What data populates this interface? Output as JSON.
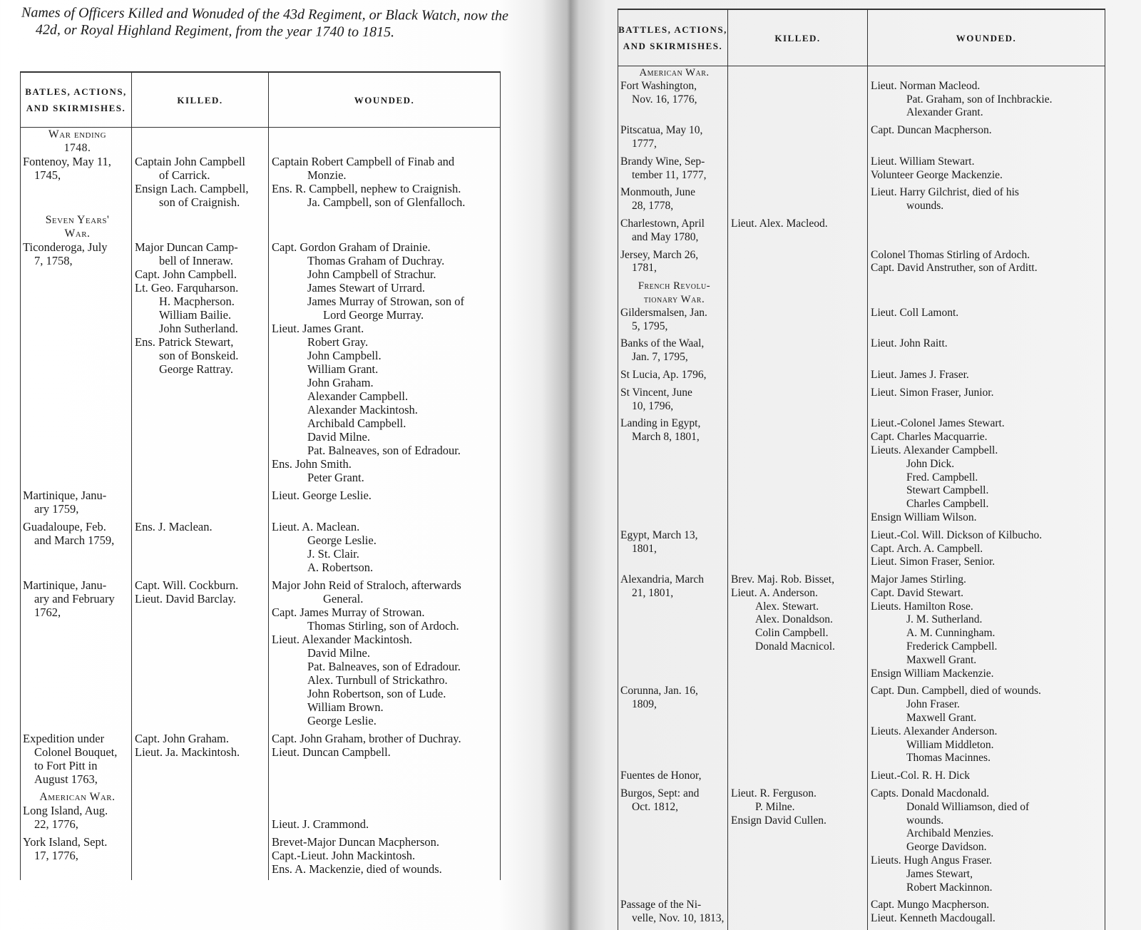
{
  "title": "Names of Officers Killed and Wonuded of the 43d Regiment, or Black Watch, now the 42d, or Royal Highland Regiment, from the year 1740 to 1815.",
  "headers": {
    "left": {
      "battles": "BATLES, ACTIONS, AND SKIRMISHES.",
      "killed": "KILLED.",
      "wounded": "WOUNDED."
    },
    "right": {
      "battles": "BATTLES, ACTIONS, AND SKIRMISHES.",
      "killed": "KILLED.",
      "wounded": "WOUNDED."
    }
  },
  "pages": {
    "left": [
      {
        "heading": [
          "War ending",
          "1748."
        ],
        "battle": [
          "Fontenoy, May 11,",
          "1745,"
        ],
        "killed": [
          "Captain John Campbell",
          {
            "t": "of Carrick.",
            "i": 1
          },
          "Ensign Lach. Campbell,",
          {
            "t": "son of Craignish.",
            "i": 1
          }
        ],
        "wounded": [
          "Captain Robert Campbell of Finab and",
          {
            "t": "Monzie.",
            "i": 1
          },
          "Ens.  R. Campbell, nephew to Craignish.",
          {
            "t": "Ja. Campbell, son of Glenfalloch.",
            "i": 1
          }
        ]
      },
      {
        "heading": [
          "Seven Years'",
          "War."
        ],
        "battle": [
          "Ticonderoga, July",
          "7, 1758,"
        ],
        "killed": [
          "Major Duncan Camp-",
          {
            "t": "bell of Inneraw.",
            "i": 1
          },
          "Capt. John Campbell.",
          "Lt. Geo. Farquharson.",
          {
            "t": "H. Macpherson.",
            "i": 1
          },
          {
            "t": "William Bailie.",
            "i": 1
          },
          {
            "t": "John Sutherland.",
            "i": 1
          },
          "Ens.  Patrick Stewart,",
          {
            "t": "son of Bonskeid.",
            "i": 1
          },
          {
            "t": "George Rattray.",
            "i": 1
          }
        ],
        "wounded": [
          "Capt. Gordon Graham of Drainie.",
          {
            "t": "Thomas Graham of Duchray.",
            "i": 1
          },
          {
            "t": "John Campbell of Strachur.",
            "i": 1
          },
          {
            "t": "James Stewart of Urrard.",
            "i": 1
          },
          {
            "t": "James Murray of Strowan, son of",
            "i": 1
          },
          {
            "t": "Lord George Murray.",
            "i": 2
          },
          "Lieut. James Grant.",
          {
            "t": "Robert Gray.",
            "i": 1
          },
          {
            "t": "John Campbell.",
            "i": 1
          },
          {
            "t": "William Grant.",
            "i": 1
          },
          {
            "t": "John Graham.",
            "i": 1
          },
          {
            "t": "Alexander Campbell.",
            "i": 1
          },
          {
            "t": "Alexander Mackintosh.",
            "i": 1
          },
          {
            "t": "Archibald Campbell.",
            "i": 1
          },
          {
            "t": "David Milne.",
            "i": 1
          },
          {
            "t": "Pat. Balneaves, son of Edradour.",
            "i": 1
          },
          "Ens.   John Smith.",
          {
            "t": "Peter Grant.",
            "i": 1
          }
        ]
      },
      {
        "battle": [
          "Martinique, Janu-",
          "ary 1759,"
        ],
        "killed": [],
        "wounded": [
          "Lieut. George Leslie."
        ]
      },
      {
        "battle": [
          "Guadaloupe, Feb.",
          "and March 1759,"
        ],
        "killed": [
          "Ens. J. Maclean."
        ],
        "wounded": [
          "Lieut. A. Maclean.",
          {
            "t": "George Leslie.",
            "i": 1
          },
          {
            "t": "J. St. Clair.",
            "i": 1
          },
          {
            "t": "A. Robertson.",
            "i": 1
          }
        ]
      },
      {
        "battle": [
          "Martinique, Janu-",
          "ary and February",
          "1762,"
        ],
        "killed": [
          "Capt. Will. Cockburn.",
          "Lieut. David Barclay."
        ],
        "wounded": [
          "Major John Reid of Straloch, afterwards",
          {
            "t": "General.",
            "i": 2
          },
          "Capt.  James Murray of Strowan.",
          {
            "t": "Thomas Stirling, son of Ardoch.",
            "i": 1
          },
          "Lieut. Alexander Mackintosh.",
          {
            "t": "David Milne.",
            "i": 1
          },
          {
            "t": "Pat. Balneaves, son of Edradour.",
            "i": 1
          },
          {
            "t": "Alex. Turnbull of Strickathro.",
            "i": 1
          },
          {
            "t": "John Robertson, son of Lude.",
            "i": 1
          },
          {
            "t": "William Brown.",
            "i": 1
          },
          {
            "t": "George Leslie.",
            "i": 1
          }
        ]
      },
      {
        "battle": [
          "Expedition  under",
          "Colonel Bouquet,",
          "to  Fort Pitt in",
          "August 1763,"
        ],
        "killed": [
          "Capt. John Graham.",
          "Lieut. Ja. Mackintosh."
        ],
        "wounded": [
          "Capt. John Graham, brother of Duchray.",
          "Lieut. Duncan Campbell."
        ]
      },
      {
        "heading": [
          "American War."
        ],
        "battle": [
          "Long Island, Aug.",
          "22, 1776,"
        ],
        "killed": [],
        "wounded": [
          "",
          "Lieut. J. Crammond."
        ]
      },
      {
        "battle": [
          "York Island, Sept.",
          "17, 1776,"
        ],
        "killed": [],
        "wounded": [
          "Brevet-Major Duncan Macpherson.",
          "Capt.-Lieut. John Mackintosh.",
          "Ens. A. Mackenzie, died of wounds."
        ]
      }
    ],
    "right": [
      {
        "heading": [
          "American War."
        ],
        "battle": [
          "Fort Washington,",
          "Nov. 16, 1776,"
        ],
        "killed": [],
        "wounded": [
          "Lieut. Norman Macleod.",
          {
            "t": "Pat. Graham, son of Inchbrackie.",
            "i": 1
          },
          {
            "t": "Alexander Grant.",
            "i": 1
          }
        ]
      },
      {
        "battle": [
          "Pitscatua, May 10,",
          "1777,"
        ],
        "killed": [],
        "wounded": [
          "Capt. Duncan Macpherson."
        ]
      },
      {
        "battle": [
          "Brandy Wine, Sep-",
          "tember 11, 1777,"
        ],
        "killed": [],
        "wounded": [
          "Lieut. William Stewart.",
          "Volunteer George Mackenzie."
        ]
      },
      {
        "battle": [
          "Monmouth, June",
          "28, 1778,"
        ],
        "killed": [],
        "wounded": [
          "Lieut.  Harry  Gilchrist,  died  of  his",
          {
            "t": "wounds.",
            "i": 1
          }
        ]
      },
      {
        "battle": [
          "Charlestown, April",
          "and May 1780,"
        ],
        "killed": [
          "Lieut. Alex. Macleod."
        ],
        "wounded": []
      },
      {
        "battle": [
          "Jersey, March 26,",
          "1781,"
        ],
        "killed": [],
        "wounded": [
          "Colonel Thomas Stirling of Ardoch.",
          "Capt. David Anstruther, son of Arditt."
        ]
      },
      {
        "heading": [
          "French Revolu-",
          "tionary War."
        ],
        "battle": [
          "Gildersmalsen, Jan.",
          "5, 1795,"
        ],
        "killed": [],
        "wounded": [
          "Lieut. Coll Lamont."
        ]
      },
      {
        "battle": [
          "Banks of the Waal,",
          "Jan. 7, 1795,"
        ],
        "killed": [],
        "wounded": [
          "Lieut. John Raitt."
        ]
      },
      {
        "battle": [
          "St Lucia, Ap. 1796,"
        ],
        "killed": [],
        "wounded": [
          "Lieut. James J. Fraser."
        ]
      },
      {
        "battle": [
          "St  Vincent,  June",
          "10, 1796,"
        ],
        "killed": [],
        "wounded": [
          "Lieut. Simon Fraser, Junior."
        ]
      },
      {
        "battle": [
          "Landing in Egypt,",
          "March 8, 1801,"
        ],
        "killed": [],
        "wounded": [
          "Lieut.-Colonel James Stewart.",
          "Capt. Charles Macquarrie.",
          "Lieuts. Alexander Campbell.",
          {
            "t": "John Dick.",
            "i": 1
          },
          {
            "t": "Fred. Campbell.",
            "i": 1
          },
          {
            "t": "Stewart Campbell.",
            "i": 1
          },
          {
            "t": "Charles Campbell.",
            "i": 1
          },
          "Ensign William Wilson."
        ]
      },
      {
        "battle": [
          "Egypt, March 13,",
          "1801,"
        ],
        "killed": [],
        "wounded": [
          "Lieut.-Col. Will. Dickson of Kilbucho.",
          "Capt. Arch. A. Campbell.",
          "Lieut. Simon Fraser, Senior."
        ]
      },
      {
        "battle": [
          "Alexandria, March",
          "21, 1801,"
        ],
        "killed": [
          "Brev. Maj. Rob. Bisset,",
          "Lieut. A. Anderson.",
          {
            "t": "Alex. Stewart.",
            "i": 1
          },
          {
            "t": "Alex. Donaldson.",
            "i": 1
          },
          {
            "t": "Colin Campbell.",
            "i": 1
          },
          {
            "t": "Donald Macnicol.",
            "i": 1
          }
        ],
        "wounded": [
          "Major James Stirling.",
          "Capt. David Stewart.",
          "Lieuts. Hamilton Rose.",
          {
            "t": "J. M. Sutherland.",
            "i": 1
          },
          {
            "t": "A. M. Cunningham.",
            "i": 1
          },
          {
            "t": "Frederick Campbell.",
            "i": 1
          },
          {
            "t": "Maxwell Grant.",
            "i": 1
          },
          "Ensign William Mackenzie."
        ]
      },
      {
        "battle": [
          "Corunna, Jan. 16,",
          "1809,"
        ],
        "killed": [],
        "wounded": [
          "Capt. Dun. Campbell, died of wounds.",
          {
            "t": "John Fraser.",
            "i": 1
          },
          {
            "t": "Maxwell Grant.",
            "i": 1
          },
          "Lieuts. Alexander Anderson.",
          {
            "t": "William Middleton.",
            "i": 1
          },
          {
            "t": "Thomas Macinnes.",
            "i": 1
          }
        ]
      },
      {
        "battle": [
          "Fuentes de Honor,"
        ],
        "killed": [],
        "wounded": [
          "Lieut.-Col. R. H. Dick"
        ]
      },
      {
        "battle": [
          "Burgos, Sept: and",
          "Oct. 1812,"
        ],
        "killed": [
          "Lieut. R. Ferguson.",
          {
            "t": "P. Milne.",
            "i": 1
          },
          "Ensign David Cullen."
        ],
        "wounded": [
          "Capts. Donald Macdonald.",
          {
            "t": "Donald  Williamson,  died  of",
            "i": 1
          },
          {
            "t": "wounds.",
            "i": 1
          },
          {
            "t": "Archibald Menzies.",
            "i": 1
          },
          {
            "t": "George Davidson.",
            "i": 1
          },
          "Lieuts. Hugh Angus Fraser.",
          {
            "t": "James Stewart,",
            "i": 1
          },
          {
            "t": "Robert Mackinnon.",
            "i": 1
          }
        ]
      },
      {
        "battle": [
          "Passage of the Ni-",
          "velle, Nov. 10, 1813,"
        ],
        "killed": [],
        "wounded": [
          "Capt. Mungo Macpherson.",
          "Lieut. Kenneth Macdougall."
        ]
      }
    ]
  }
}
